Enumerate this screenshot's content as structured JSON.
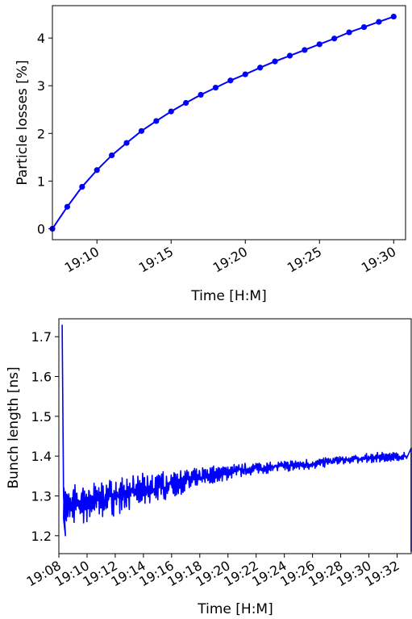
{
  "chart_data": [
    {
      "type": "line",
      "xlabel": "Time [H:M]",
      "ylabel": "Particle losses [%]",
      "xlim": [
        "19:07:00",
        "19:30:48"
      ],
      "ylim": [
        -0.23,
        4.68
      ],
      "grid": false,
      "color": "#0000ff",
      "marker": "circle",
      "xticks": [
        "19:10",
        "19:15",
        "19:20",
        "19:25",
        "19:30"
      ],
      "yticks": [
        "0",
        "1",
        "2",
        "3",
        "4"
      ],
      "series": [
        {
          "x": [
            "19:07",
            "19:08",
            "19:09",
            "19:10",
            "19:11",
            "19:12",
            "19:13",
            "19:14",
            "19:15",
            "19:16",
            "19:17",
            "19:18",
            "19:19",
            "19:20",
            "19:21",
            "19:22",
            "19:23",
            "19:24",
            "19:25",
            "19:26",
            "19:27",
            "19:28",
            "19:29",
            "19:30"
          ],
          "values": [
            0.0,
            0.46,
            0.88,
            1.23,
            1.54,
            1.8,
            2.05,
            2.26,
            2.46,
            2.64,
            2.81,
            2.96,
            3.11,
            3.24,
            3.38,
            3.51,
            3.63,
            3.75,
            3.87,
            3.99,
            4.12,
            4.23,
            4.34,
            4.45
          ]
        }
      ]
    },
    {
      "type": "line",
      "xlabel": "Time [H:M]",
      "ylabel": "Bunch length [ns]",
      "xlim": [
        "19:08:00",
        "19:33:00"
      ],
      "ylim": [
        1.155,
        1.745
      ],
      "grid": false,
      "color": "#0000ff",
      "xticks": [
        "19:08",
        "19:10",
        "19:12",
        "19:14",
        "19:16",
        "19:18",
        "19:20",
        "19:22",
        "19:24",
        "19:26",
        "19:28",
        "19:30",
        "19:32"
      ],
      "yticks": [
        "1.2",
        "1.3",
        "1.4",
        "1.5",
        "1.6",
        "1.7"
      ],
      "trend_points": [
        {
          "t": "19:08:20",
          "v": 1.27,
          "amp": 0.05
        },
        {
          "t": "19:10:00",
          "v": 1.285,
          "amp": 0.05
        },
        {
          "t": "19:12:00",
          "v": 1.3,
          "amp": 0.045
        },
        {
          "t": "19:14:00",
          "v": 1.315,
          "amp": 0.04
        },
        {
          "t": "19:16:00",
          "v": 1.33,
          "amp": 0.035
        },
        {
          "t": "19:18:00",
          "v": 1.345,
          "amp": 0.025
        },
        {
          "t": "19:20:00",
          "v": 1.36,
          "amp": 0.02
        },
        {
          "t": "19:22:00",
          "v": 1.37,
          "amp": 0.015
        },
        {
          "t": "19:24:00",
          "v": 1.375,
          "amp": 0.013
        },
        {
          "t": "19:26:00",
          "v": 1.38,
          "amp": 0.013
        },
        {
          "t": "19:28:00",
          "v": 1.39,
          "amp": 0.012
        },
        {
          "t": "19:30:00",
          "v": 1.395,
          "amp": 0.012
        },
        {
          "t": "19:32:40",
          "v": 1.4,
          "amp": 0.012
        }
      ],
      "spikes": [
        {
          "t": "19:08:14",
          "v": 1.73
        },
        {
          "t": "19:08:20",
          "v": 1.3
        },
        {
          "t": "19:08:28",
          "v": 1.2
        },
        {
          "t": "19:33:00",
          "v": 1.42
        },
        {
          "t": "19:33:00",
          "v": 1.16
        }
      ]
    }
  ]
}
